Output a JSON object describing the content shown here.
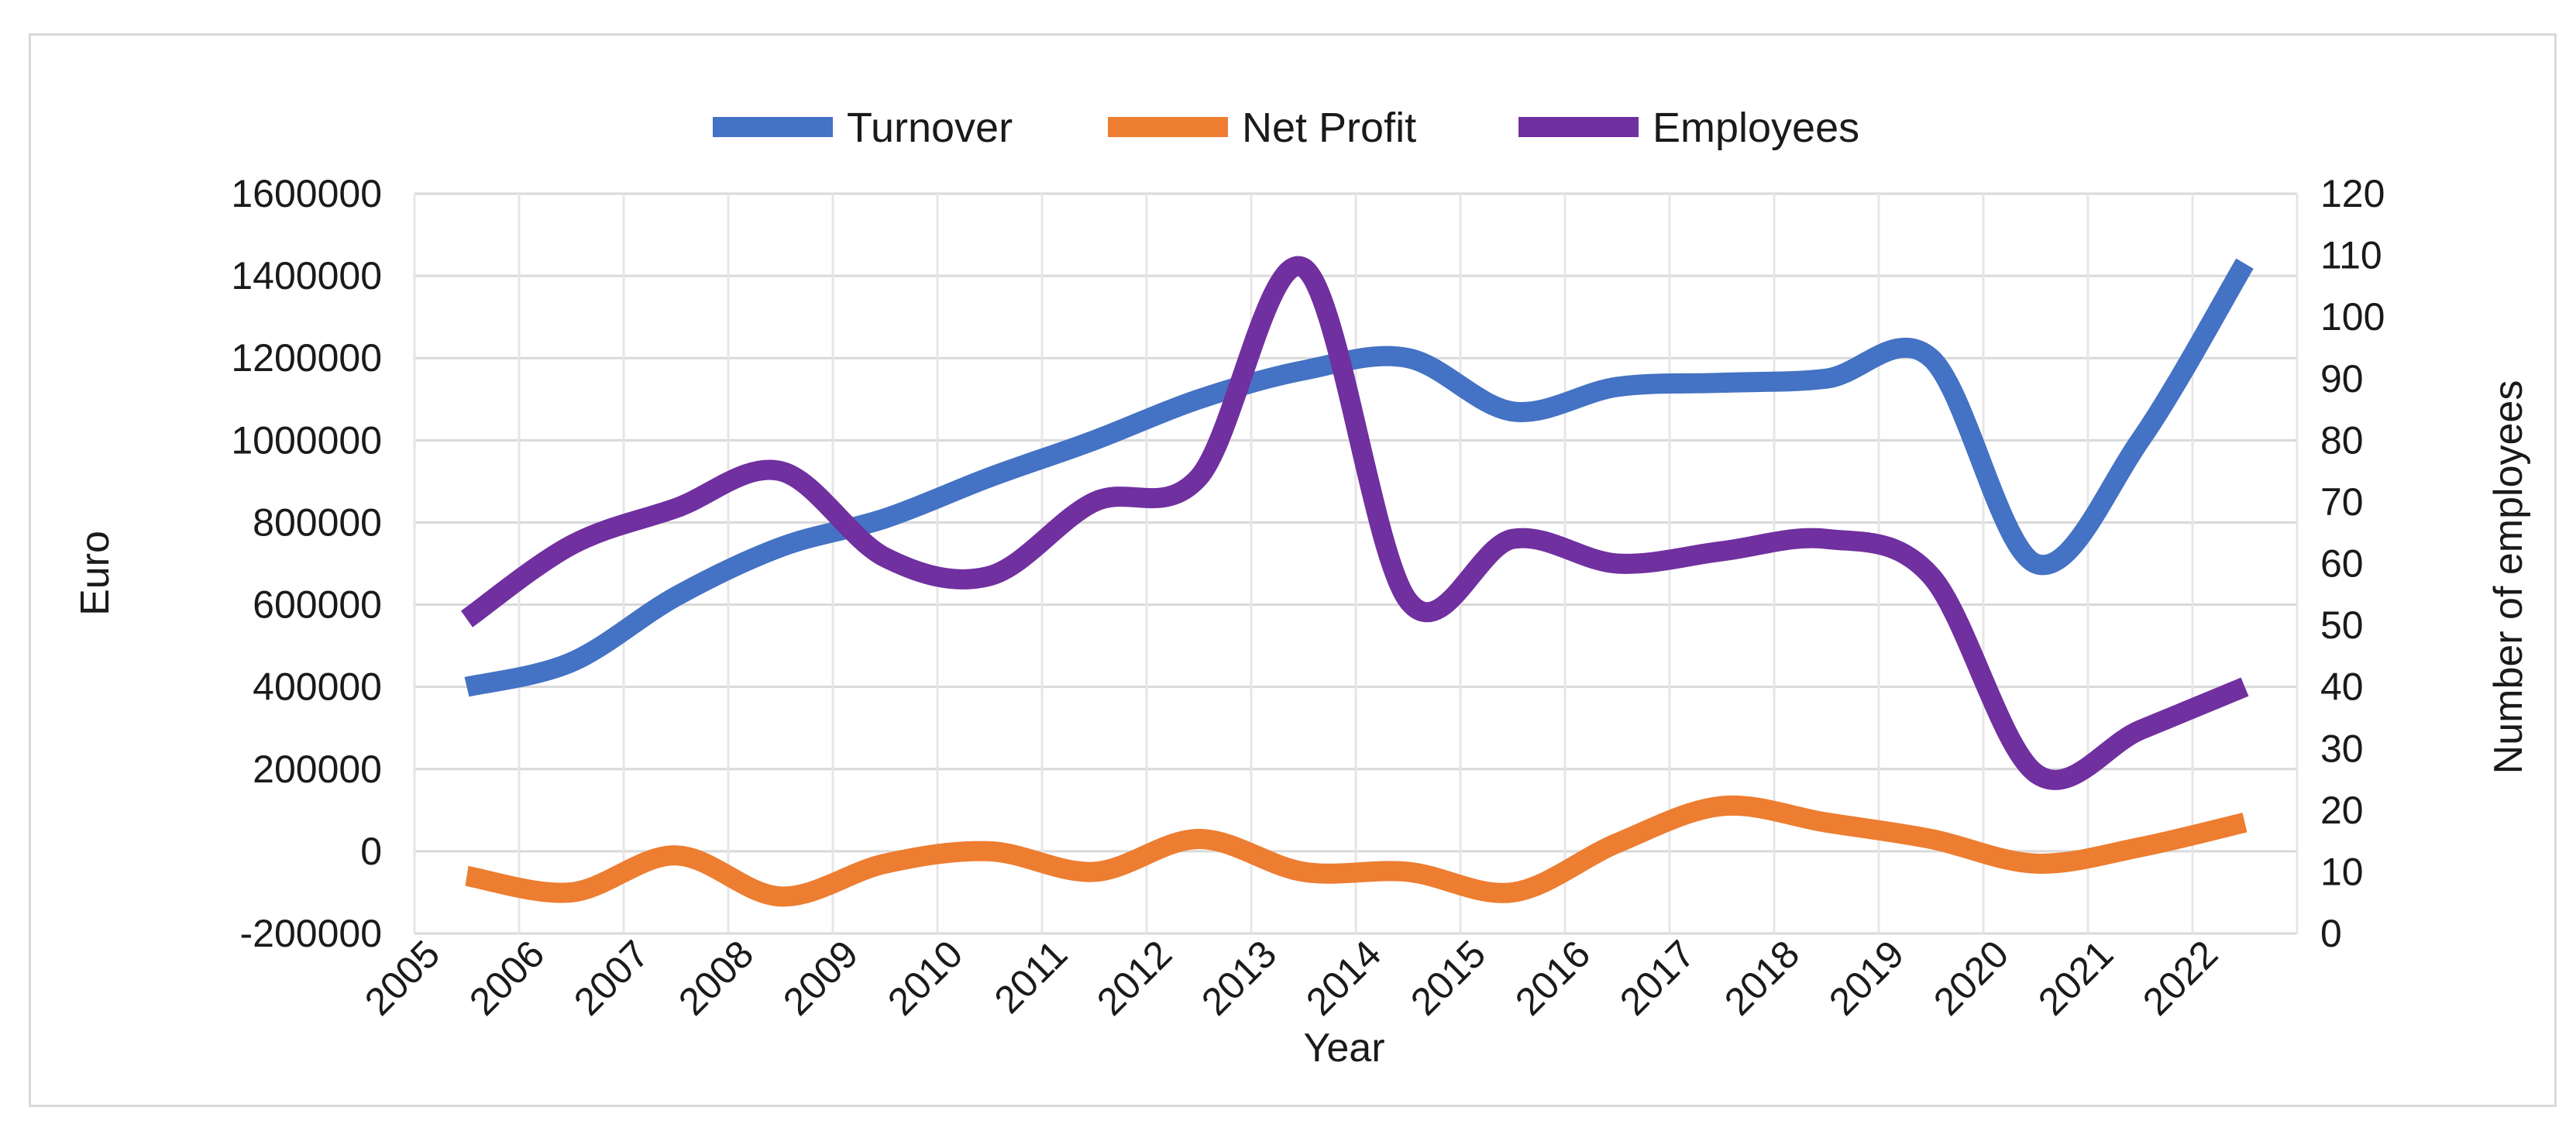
{
  "chart_data": {
    "type": "line",
    "title": "",
    "xlabel": "Year",
    "ylabel": "Euro",
    "y2label": "Number of employees",
    "categories": [
      "2005",
      "2006",
      "2007",
      "2008",
      "2009",
      "2010",
      "2011",
      "2012",
      "2013",
      "2014",
      "2015",
      "2016",
      "2017",
      "2018",
      "2019",
      "2020",
      "2021",
      "2022"
    ],
    "ylim": [
      -200000,
      1600000
    ],
    "y2lim": [
      0,
      120
    ],
    "yticks": [
      "-200000",
      "0",
      "200000",
      "400000",
      "600000",
      "800000",
      "1000000",
      "1200000",
      "1400000",
      "1600000"
    ],
    "y2ticks": [
      "0",
      "10",
      "20",
      "30",
      "40",
      "50",
      "60",
      "70",
      "80",
      "90",
      "100",
      "110",
      "120"
    ],
    "grid": true,
    "legend_position": "top",
    "series": [
      {
        "name": "Turnover",
        "axis": "left",
        "color": "#4472C4",
        "values": [
          400000,
          460000,
          620000,
          740000,
          810000,
          910000,
          1000000,
          1100000,
          1170000,
          1200000,
          1070000,
          1130000,
          1140000,
          1150000,
          1200000,
          700000,
          1000000,
          1430000
        ]
      },
      {
        "name": "Net Profit",
        "axis": "left",
        "color": "#ED7D31",
        "values": [
          -60000,
          -100000,
          -10000,
          -110000,
          -30000,
          0,
          -50000,
          30000,
          -50000,
          -50000,
          -100000,
          20000,
          110000,
          70000,
          30000,
          -30000,
          10000,
          70000
        ]
      },
      {
        "name": "Employees",
        "axis": "right",
        "color": "#7030A0",
        "values": [
          51,
          63,
          69,
          75,
          61,
          58,
          70,
          74,
          108,
          54,
          64,
          60,
          62,
          64,
          58,
          26,
          33,
          40
        ]
      }
    ]
  }
}
